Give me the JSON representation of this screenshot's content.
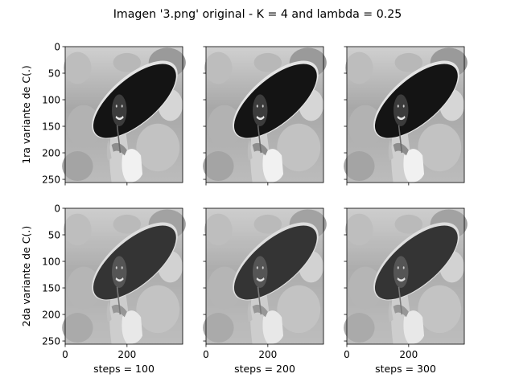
{
  "figure": {
    "title": "Imagen '3.png' original - K = 4 and lambda = 0.25"
  },
  "chart_data": {
    "type": "image-grid",
    "rows": 2,
    "cols": 3,
    "row_labels": [
      "1ra variante de C(.)",
      "2da variante de C(.)"
    ],
    "col_labels": [
      "steps = 100",
      "steps = 200",
      "steps = 300"
    ],
    "xlim": [
      0,
      380
    ],
    "ylim": [
      256,
      0
    ],
    "xticks": [
      0,
      200
    ],
    "yticks": [
      0,
      50,
      100,
      150,
      200,
      250
    ],
    "sharex": true,
    "sharey": true,
    "colormap": "gray",
    "image_description_colors": {
      "background_light": "#c8c8c8",
      "background_mid": "#a0a0a0",
      "hat": "#151515",
      "hat_rim": "#e6e6e6",
      "face": "#3a3a3a",
      "shirt": "#d2d2d2",
      "bag": "#f2f2f2"
    },
    "panels": [
      {
        "row": 0,
        "col": 0,
        "steps": 100,
        "variant": 1
      },
      {
        "row": 0,
        "col": 1,
        "steps": 200,
        "variant": 1
      },
      {
        "row": 0,
        "col": 2,
        "steps": 300,
        "variant": 1
      },
      {
        "row": 1,
        "col": 0,
        "steps": 100,
        "variant": 2
      },
      {
        "row": 1,
        "col": 1,
        "steps": 200,
        "variant": 2
      },
      {
        "row": 1,
        "col": 2,
        "steps": 300,
        "variant": 2
      }
    ]
  }
}
